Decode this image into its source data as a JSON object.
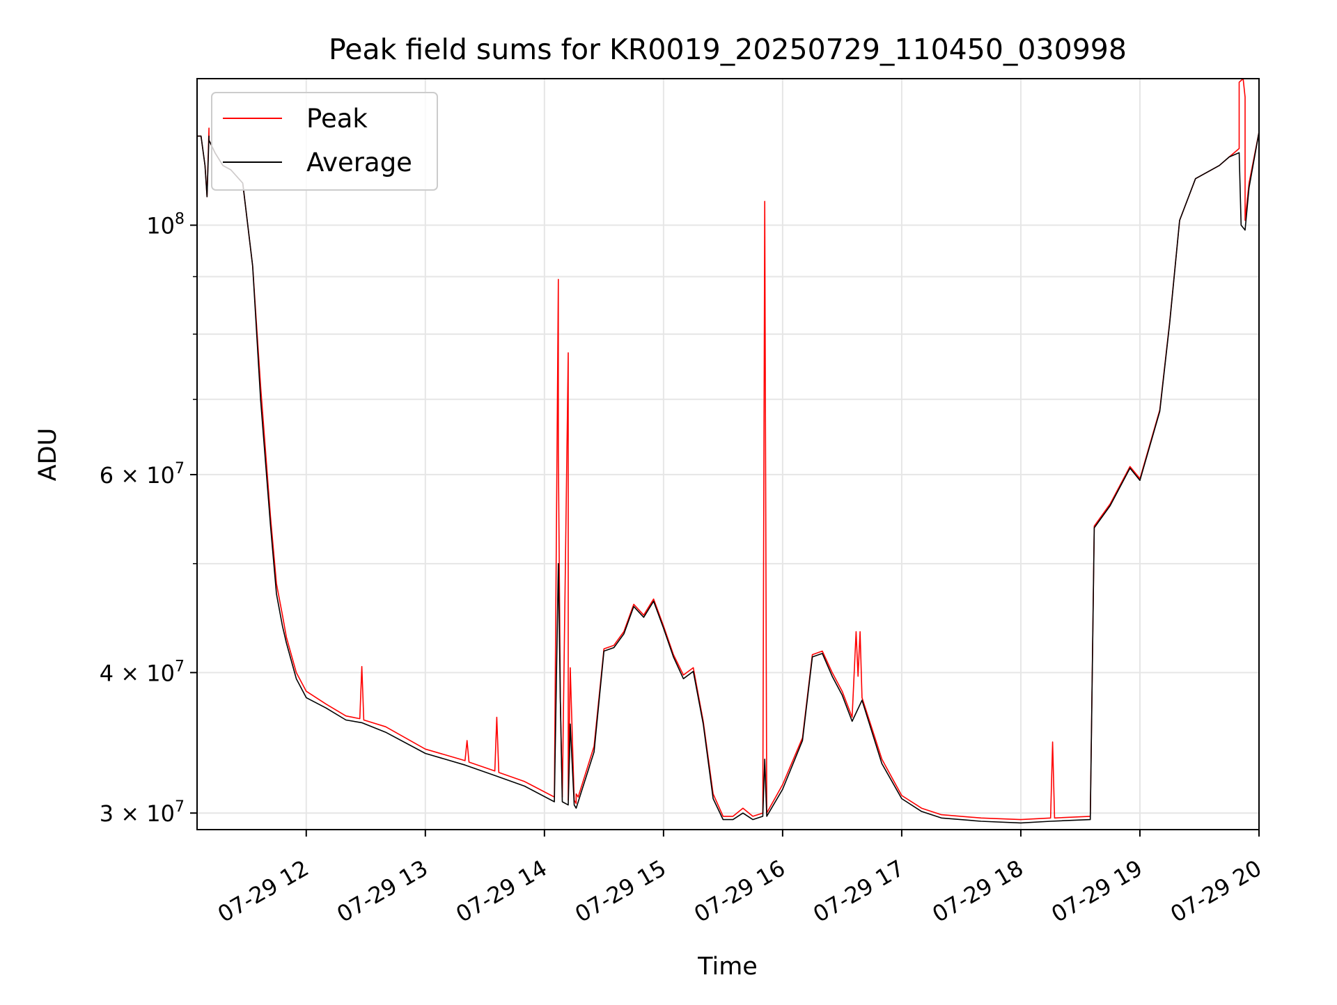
{
  "chart_data": {
    "type": "line",
    "title": "Peak field sums for KR0019_20250729_110450_030998",
    "xlabel": "Time",
    "ylabel": "ADU",
    "y_scale": "log",
    "grid": true,
    "legend_position": "top-left",
    "xlim": [
      "2025-07-29 11:05",
      "2025-07-29 20:00"
    ],
    "ylim": [
      29000000,
      135000000
    ],
    "x_ticks": [
      {
        "value": "2025-07-29 12:00",
        "label": "07-29 12"
      },
      {
        "value": "2025-07-29 13:00",
        "label": "07-29 13"
      },
      {
        "value": "2025-07-29 14:00",
        "label": "07-29 14"
      },
      {
        "value": "2025-07-29 15:00",
        "label": "07-29 15"
      },
      {
        "value": "2025-07-29 16:00",
        "label": "07-29 16"
      },
      {
        "value": "2025-07-29 17:00",
        "label": "07-29 17"
      },
      {
        "value": "2025-07-29 18:00",
        "label": "07-29 18"
      },
      {
        "value": "2025-07-29 19:00",
        "label": "07-29 19"
      },
      {
        "value": "2025-07-29 20:00",
        "label": "07-29 20"
      }
    ],
    "y_ticks": [
      {
        "value": 100000000,
        "base": "10",
        "exp": "8",
        "prefix": ""
      },
      {
        "value": 60000000,
        "base": "10",
        "exp": "7",
        "prefix": "6 × "
      },
      {
        "value": 40000000,
        "base": "10",
        "exp": "7",
        "prefix": "4 × "
      },
      {
        "value": 30000000,
        "base": "10",
        "exp": "7",
        "prefix": "3 × "
      }
    ],
    "y_minor_ticks": [
      50000000,
      70000000,
      80000000,
      90000000
    ],
    "series": [
      {
        "name": "Peak",
        "color": "#ff0000",
        "x": [
          "2025-07-29 11:05",
          "2025-07-29 11:07",
          "2025-07-29 11:09",
          "2025-07-29 11:10",
          "2025-07-29 11:11",
          "2025-07-29 11:11",
          "2025-07-29 11:12",
          "2025-07-29 11:14",
          "2025-07-29 11:18",
          "2025-07-29 11:22",
          "2025-07-29 11:28",
          "2025-07-29 11:33",
          "2025-07-29 11:37",
          "2025-07-29 11:42",
          "2025-07-29 11:45",
          "2025-07-29 11:48",
          "2025-07-29 11:50",
          "2025-07-29 11:55",
          "2025-07-29 12:00",
          "2025-07-29 12:10",
          "2025-07-29 12:20",
          "2025-07-29 12:27",
          "2025-07-29 12:28",
          "2025-07-29 12:29",
          "2025-07-29 12:40",
          "2025-07-29 13:00",
          "2025-07-29 13:20",
          "2025-07-29 13:21",
          "2025-07-29 13:22",
          "2025-07-29 13:35",
          "2025-07-29 13:36",
          "2025-07-29 13:37",
          "2025-07-29 13:50",
          "2025-07-29 14:05",
          "2025-07-29 14:07",
          "2025-07-29 14:07",
          "2025-07-29 14:08",
          "2025-07-29 14:08",
          "2025-07-29 14:09",
          "2025-07-29 14:12",
          "2025-07-29 14:12",
          "2025-07-29 14:13",
          "2025-07-29 14:15",
          "2025-07-29 14:16",
          "2025-07-29 14:16",
          "2025-07-29 14:17",
          "2025-07-29 14:25",
          "2025-07-29 14:30",
          "2025-07-29 14:35",
          "2025-07-29 14:40",
          "2025-07-29 14:45",
          "2025-07-29 14:50",
          "2025-07-29 14:55",
          "2025-07-29 15:00",
          "2025-07-29 15:05",
          "2025-07-29 15:10",
          "2025-07-29 15:15",
          "2025-07-29 15:20",
          "2025-07-29 15:25",
          "2025-07-29 15:30",
          "2025-07-29 15:35",
          "2025-07-29 15:40",
          "2025-07-29 15:45",
          "2025-07-29 15:50",
          "2025-07-29 15:51",
          "2025-07-29 15:52",
          "2025-07-29 16:00",
          "2025-07-29 16:10",
          "2025-07-29 16:15",
          "2025-07-29 16:20",
          "2025-07-29 16:25",
          "2025-07-29 16:30",
          "2025-07-29 16:35",
          "2025-07-29 16:37",
          "2025-07-29 16:38",
          "2025-07-29 16:39",
          "2025-07-29 16:40",
          "2025-07-29 16:50",
          "2025-07-29 17:00",
          "2025-07-29 17:10",
          "2025-07-29 17:20",
          "2025-07-29 17:40",
          "2025-07-29 18:00",
          "2025-07-29 18:15",
          "2025-07-29 18:16",
          "2025-07-29 18:17",
          "2025-07-29 18:35",
          "2025-07-29 18:37",
          "2025-07-29 18:45",
          "2025-07-29 18:55",
          "2025-07-29 19:00",
          "2025-07-29 19:10",
          "2025-07-29 19:15",
          "2025-07-29 19:20",
          "2025-07-29 19:28",
          "2025-07-29 19:40",
          "2025-07-29 19:45",
          "2025-07-29 19:50",
          "2025-07-29 19:50",
          "2025-07-29 19:52",
          "2025-07-29 19:53",
          "2025-07-29 19:53",
          "2025-07-29 19:55",
          "2025-07-29 20:00"
        ],
        "y": [
          120000000,
          120000000,
          113000000,
          106000000,
          122000000,
          119000000,
          118000000,
          116000000,
          113000000,
          112000000,
          109000000,
          92000000,
          72000000,
          55000000,
          48000000,
          45000000,
          43000000,
          40000000,
          38500000,
          37500000,
          36600000,
          36400000,
          40500000,
          36300000,
          35800000,
          34200000,
          33400000,
          34800000,
          33300000,
          32700000,
          36500000,
          32600000,
          32000000,
          31000000,
          89500000,
          63000000,
          38500000,
          38000000,
          31000000,
          77000000,
          30800000,
          40400000,
          30800000,
          30600000,
          31200000,
          31000000,
          34400000,
          42000000,
          42300000,
          43500000,
          46000000,
          45000000,
          46500000,
          44000000,
          41500000,
          39800000,
          40400000,
          36200000,
          31200000,
          29800000,
          29800000,
          30300000,
          29800000,
          30000000,
          105000000,
          30000000,
          31800000,
          35000000,
          41500000,
          41800000,
          40000000,
          38500000,
          36500000,
          43500000,
          39700000,
          43500000,
          38000000,
          33500000,
          31100000,
          30300000,
          29900000,
          29700000,
          29600000,
          29700000,
          34700000,
          29700000,
          29800000,
          54000000,
          56500000,
          61000000,
          59500000,
          68500000,
          82000000,
          101000000,
          110000000,
          113000000,
          115000000,
          117000000,
          134000000,
          135000000,
          130000000,
          101000000,
          109000000,
          121000000
        ]
      },
      {
        "name": "Average",
        "color": "#000000",
        "x": [
          "2025-07-29 11:05",
          "2025-07-29 11:07",
          "2025-07-29 11:09",
          "2025-07-29 11:10",
          "2025-07-29 11:11",
          "2025-07-29 11:11",
          "2025-07-29 11:12",
          "2025-07-29 11:14",
          "2025-07-29 11:18",
          "2025-07-29 11:22",
          "2025-07-29 11:28",
          "2025-07-29 11:33",
          "2025-07-29 11:37",
          "2025-07-29 11:42",
          "2025-07-29 11:45",
          "2025-07-29 11:48",
          "2025-07-29 11:50",
          "2025-07-29 11:55",
          "2025-07-29 12:00",
          "2025-07-29 12:10",
          "2025-07-29 12:20",
          "2025-07-29 12:28",
          "2025-07-29 12:40",
          "2025-07-29 13:00",
          "2025-07-29 13:20",
          "2025-07-29 13:35",
          "2025-07-29 13:50",
          "2025-07-29 14:05",
          "2025-07-29 14:07",
          "2025-07-29 14:08",
          "2025-07-29 14:09",
          "2025-07-29 14:12",
          "2025-07-29 14:13",
          "2025-07-29 14:15",
          "2025-07-29 14:16",
          "2025-07-29 14:25",
          "2025-07-29 14:30",
          "2025-07-29 14:35",
          "2025-07-29 14:40",
          "2025-07-29 14:45",
          "2025-07-29 14:50",
          "2025-07-29 14:55",
          "2025-07-29 15:00",
          "2025-07-29 15:05",
          "2025-07-29 15:10",
          "2025-07-29 15:15",
          "2025-07-29 15:20",
          "2025-07-29 15:25",
          "2025-07-29 15:30",
          "2025-07-29 15:35",
          "2025-07-29 15:40",
          "2025-07-29 15:45",
          "2025-07-29 15:50",
          "2025-07-29 15:51",
          "2025-07-29 15:52",
          "2025-07-29 16:00",
          "2025-07-29 16:10",
          "2025-07-29 16:15",
          "2025-07-29 16:20",
          "2025-07-29 16:25",
          "2025-07-29 16:30",
          "2025-07-29 16:35",
          "2025-07-29 16:40",
          "2025-07-29 16:50",
          "2025-07-29 17:00",
          "2025-07-29 17:10",
          "2025-07-29 17:20",
          "2025-07-29 17:40",
          "2025-07-29 18:00",
          "2025-07-29 18:15",
          "2025-07-29 18:35",
          "2025-07-29 18:37",
          "2025-07-29 18:45",
          "2025-07-29 18:55",
          "2025-07-29 19:00",
          "2025-07-29 19:10",
          "2025-07-29 19:15",
          "2025-07-29 19:20",
          "2025-07-29 19:28",
          "2025-07-29 19:40",
          "2025-07-29 19:45",
          "2025-07-29 19:50",
          "2025-07-29 19:51",
          "2025-07-29 19:53",
          "2025-07-29 19:55",
          "2025-07-29 20:00"
        ],
        "y": [
          120000000,
          120000000,
          113000000,
          106000000,
          120000000,
          119000000,
          118000000,
          116000000,
          113000000,
          112000000,
          109000000,
          92000000,
          70000000,
          54000000,
          47000000,
          44000000,
          42500000,
          39500000,
          38000000,
          37200000,
          36300000,
          36100000,
          35400000,
          33900000,
          33100000,
          32400000,
          31700000,
          30700000,
          50000000,
          38000000,
          30700000,
          30500000,
          36000000,
          30500000,
          30300000,
          34000000,
          41800000,
          42100000,
          43300000,
          45800000,
          44800000,
          46300000,
          43800000,
          41300000,
          39500000,
          40100000,
          36000000,
          30900000,
          29600000,
          29600000,
          30000000,
          29600000,
          29800000,
          33500000,
          29800000,
          31500000,
          34800000,
          41300000,
          41600000,
          39700000,
          38200000,
          36200000,
          37800000,
          33200000,
          30900000,
          30100000,
          29700000,
          29500000,
          29400000,
          29500000,
          29600000,
          53800000,
          56300000,
          60800000,
          59300000,
          68300000,
          81800000,
          101000000,
          110000000,
          113000000,
          115000000,
          116000000,
          100000000,
          99000000,
          108000000,
          121000000
        ]
      }
    ]
  }
}
